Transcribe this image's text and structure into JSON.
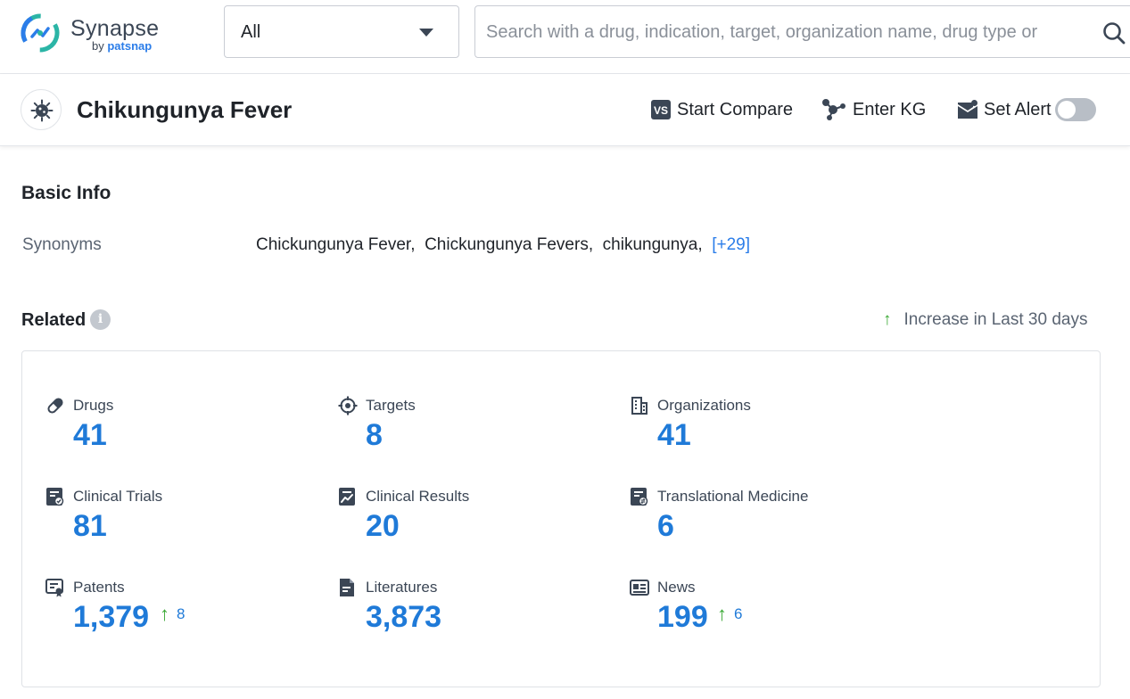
{
  "brand": {
    "name": "Synapse",
    "by": "by",
    "sub": "patsnap"
  },
  "search": {
    "scope": "All",
    "placeholder": "Search with a drug, indication, target, organization name, drug type or"
  },
  "title": "Chikungunya Fever",
  "actions": {
    "compare": "Start Compare",
    "kg": "Enter KG",
    "alert": "Set Alert",
    "alert_enabled": false
  },
  "basic_info": {
    "heading": "Basic Info",
    "synonyms_label": "Synonyms",
    "synonyms": [
      "Chickungunya Fever,",
      "Chickungunya Fevers,",
      "chikungunya,"
    ],
    "more": "[+29]"
  },
  "related": {
    "heading": "Related",
    "info_glyph": "i",
    "legend": "Increase in Last 30 days",
    "stats": [
      {
        "label": "Drugs",
        "value": "41",
        "icon": "pill-icon"
      },
      {
        "label": "Targets",
        "value": "8",
        "icon": "target-icon"
      },
      {
        "label": "Organizations",
        "value": "41",
        "icon": "building-icon"
      },
      {
        "label": "Clinical Trials",
        "value": "81",
        "icon": "clipboard-icon"
      },
      {
        "label": "Clinical Results",
        "value": "20",
        "icon": "results-chart-icon"
      },
      {
        "label": "Translational Medicine",
        "value": "6",
        "icon": "translational-icon"
      },
      {
        "label": "Patents",
        "value": "1,379",
        "delta": "8",
        "icon": "patent-icon"
      },
      {
        "label": "Literatures",
        "value": "3,873",
        "icon": "document-icon"
      },
      {
        "label": "News",
        "value": "199",
        "delta": "6",
        "icon": "newspaper-icon"
      }
    ]
  },
  "colors": {
    "accent": "#1f7ad8",
    "increase": "#3aa935",
    "link": "#2b7de9"
  }
}
